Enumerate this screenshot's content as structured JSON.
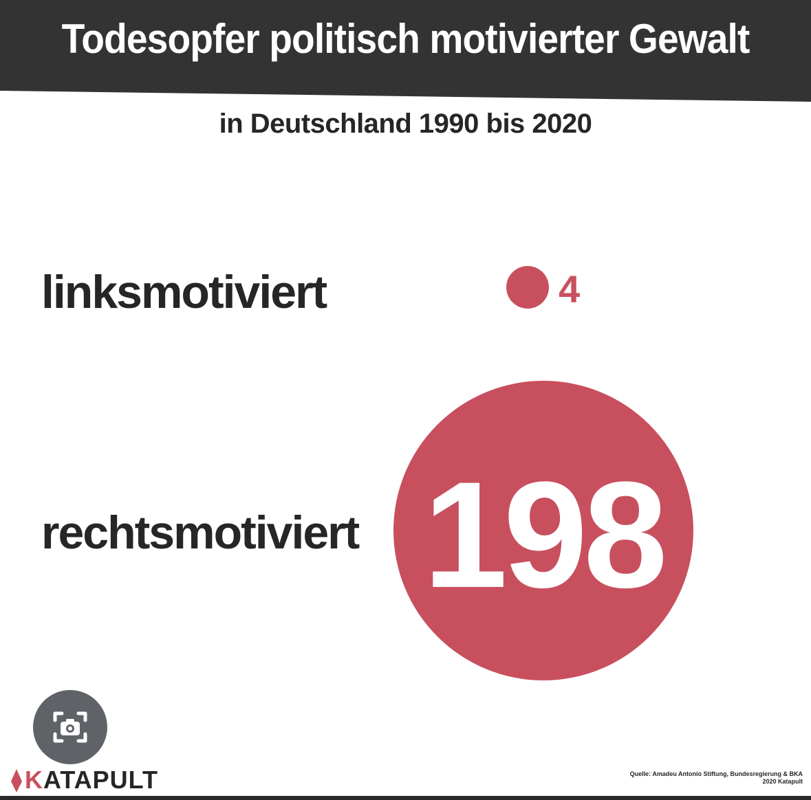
{
  "colors": {
    "header": "#333333",
    "accent": "#c8505e",
    "text": "#262626"
  },
  "chart_data": {
    "type": "bubble",
    "title": "Todesopfer politisch motivierter Gewalt",
    "subtitle": "in Deutschland 1990 bis 2020",
    "categories": [
      "linksmotiviert",
      "rechtsmotiviert"
    ],
    "values": [
      4,
      198
    ],
    "value_labels": [
      "4",
      "198"
    ]
  },
  "footer": {
    "logo_text": "ATAPULT",
    "logo_initial": "K",
    "source_line1": "Quelle: Amadeu Antonio Stiftung, Bundesregierung & BKA",
    "source_line2": "2020 Katapult"
  },
  "overlay": {
    "lens_icon": "camera-search-icon"
  }
}
